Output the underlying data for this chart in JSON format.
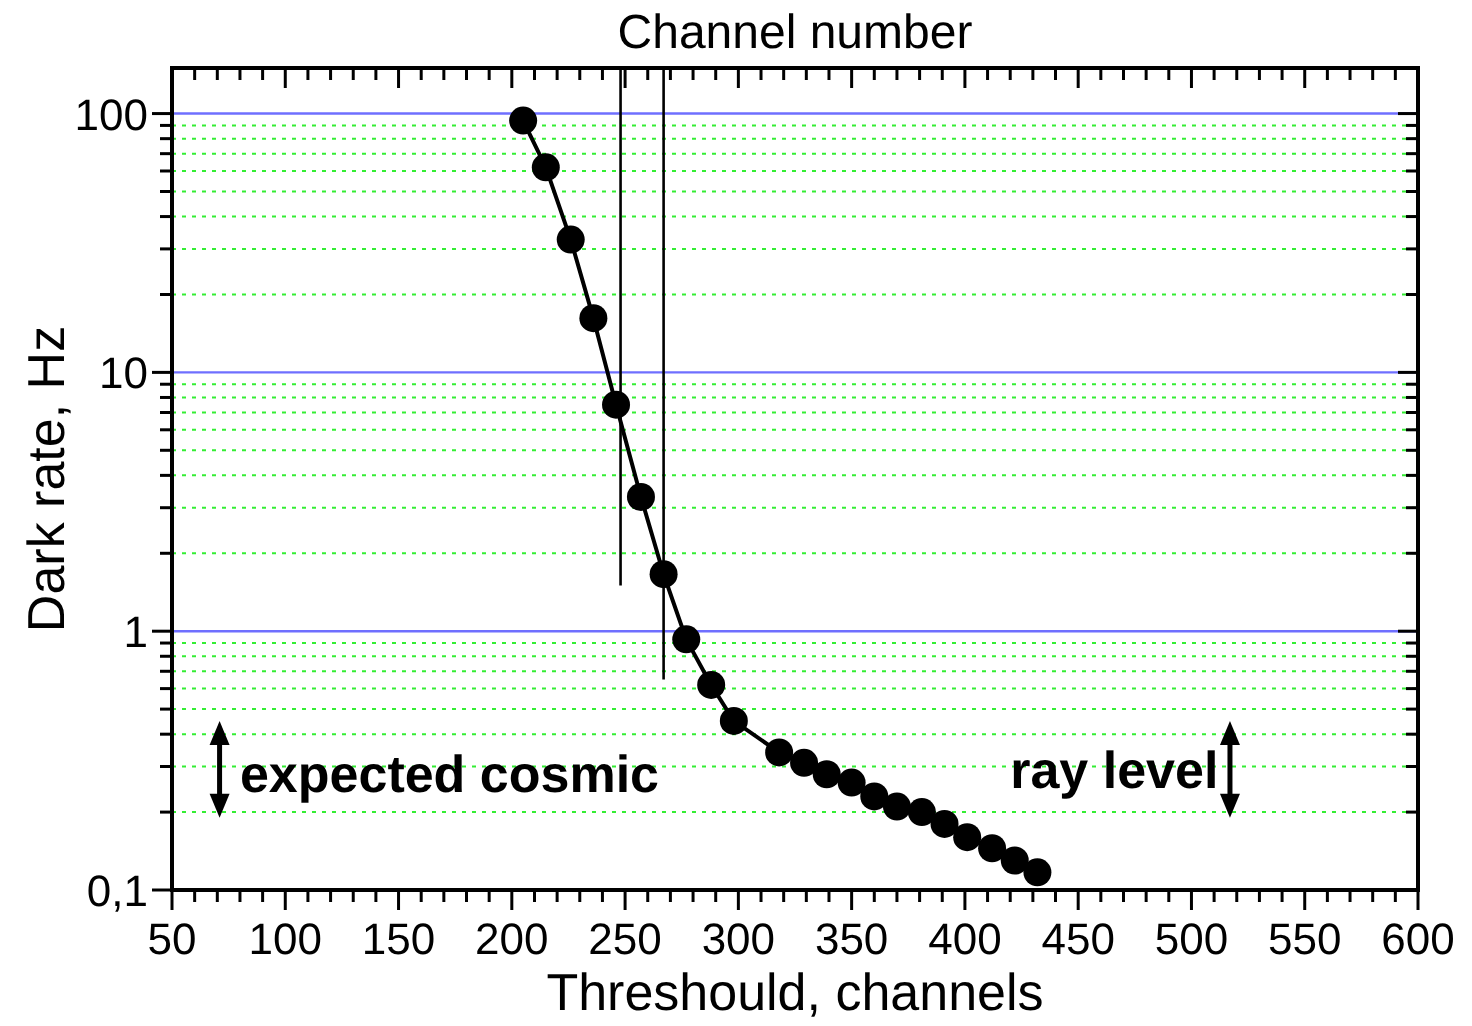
{
  "chart_data": {
    "type": "line",
    "xlabel": "Threshould, channels",
    "ylabel": "Dark rate, Hz",
    "x2label": "Channel number",
    "xlim": [
      50,
      600
    ],
    "ylim": [
      0.1,
      150
    ],
    "log": "y",
    "grid": "y",
    "marker": "circle",
    "line_style": "solid",
    "xticks": [
      50,
      {
        "value": 60,
        "label": null
      },
      {
        "value": 70,
        "label": null
      },
      {
        "value": 80,
        "label": null
      },
      {
        "value": 90,
        "label": null
      },
      100,
      {
        "value": 110,
        "label": null
      },
      {
        "value": 120,
        "label": null
      },
      {
        "value": 130,
        "label": null
      },
      {
        "value": 140,
        "label": null
      },
      150,
      {
        "value": 160,
        "label": null
      },
      {
        "value": 170,
        "label": null
      },
      {
        "value": 180,
        "label": null
      },
      {
        "value": 190,
        "label": null
      },
      200,
      {
        "value": 210,
        "label": null
      },
      {
        "value": 220,
        "label": null
      },
      {
        "value": 230,
        "label": null
      },
      {
        "value": 240,
        "label": null
      },
      250,
      {
        "value": 260,
        "label": null
      },
      {
        "value": 270,
        "label": null
      },
      {
        "value": 280,
        "label": null
      },
      {
        "value": 290,
        "label": null
      },
      300,
      {
        "value": 310,
        "label": null
      },
      {
        "value": 320,
        "label": null
      },
      {
        "value": 330,
        "label": null
      },
      {
        "value": 340,
        "label": null
      },
      350,
      {
        "value": 360,
        "label": null
      },
      {
        "value": 370,
        "label": null
      },
      {
        "value": 380,
        "label": null
      },
      {
        "value": 390,
        "label": null
      },
      400,
      {
        "value": 410,
        "label": null
      },
      {
        "value": 420,
        "label": null
      },
      {
        "value": 430,
        "label": null
      },
      {
        "value": 440,
        "label": null
      },
      450,
      {
        "value": 460,
        "label": null
      },
      {
        "value": 470,
        "label": null
      },
      {
        "value": 480,
        "label": null
      },
      {
        "value": 490,
        "label": null
      },
      500,
      {
        "value": 510,
        "label": null
      },
      {
        "value": 520,
        "label": null
      },
      {
        "value": 530,
        "label": null
      },
      {
        "value": 540,
        "label": null
      },
      550,
      {
        "value": 560,
        "label": null
      },
      {
        "value": 570,
        "label": null
      },
      {
        "value": 580,
        "label": null
      },
      {
        "value": 590,
        "label": null
      },
      600
    ],
    "yticks": [
      {
        "value": 0.1,
        "label": "0,1"
      },
      {
        "value": 0.2,
        "label": null
      },
      {
        "value": 0.3,
        "label": null
      },
      {
        "value": 0.4,
        "label": null
      },
      {
        "value": 0.5,
        "label": null
      },
      {
        "value": 0.6,
        "label": null
      },
      {
        "value": 0.7,
        "label": null
      },
      {
        "value": 0.8,
        "label": null
      },
      {
        "value": 0.9,
        "label": null
      },
      1,
      {
        "value": 2,
        "label": null
      },
      {
        "value": 3,
        "label": null
      },
      {
        "value": 4,
        "label": null
      },
      {
        "value": 5,
        "label": null
      },
      {
        "value": 6,
        "label": null
      },
      {
        "value": 7,
        "label": null
      },
      {
        "value": 8,
        "label": null
      },
      {
        "value": 9,
        "label": null
      },
      10,
      {
        "value": 20,
        "label": null
      },
      {
        "value": 30,
        "label": null
      },
      {
        "value": 40,
        "label": null
      },
      {
        "value": 50,
        "label": null
      },
      {
        "value": 60,
        "label": null
      },
      {
        "value": 70,
        "label": null
      },
      {
        "value": 80,
        "label": null
      },
      {
        "value": 90,
        "label": null
      },
      100
    ],
    "annotations": [
      "expected cosmic",
      "ray level"
    ],
    "series": [
      {
        "color": "#000000",
        "x": [
          205,
          215,
          226,
          236,
          246,
          257,
          267,
          277,
          288,
          298,
          318,
          329,
          339,
          350,
          360,
          370,
          381,
          391,
          401,
          412,
          422,
          432
        ],
        "values": [
          94,
          62,
          32.6,
          16.2,
          7.5,
          3.3,
          1.66,
          0.93,
          0.62,
          0.45,
          0.34,
          0.31,
          0.28,
          0.26,
          0.23,
          0.21,
          0.2,
          0.18,
          0.16,
          0.145,
          0.13,
          0.117
        ]
      },
      {
        "type": "line",
        "marker": "none",
        "color": "#000000",
        "x": [
          248,
          248
        ],
        "values": [
          150,
          1.5
        ]
      },
      {
        "type": "line",
        "marker": "none",
        "color": "#000000",
        "x": [
          267,
          267
        ],
        "values": [
          150,
          0.65
        ]
      }
    ]
  }
}
